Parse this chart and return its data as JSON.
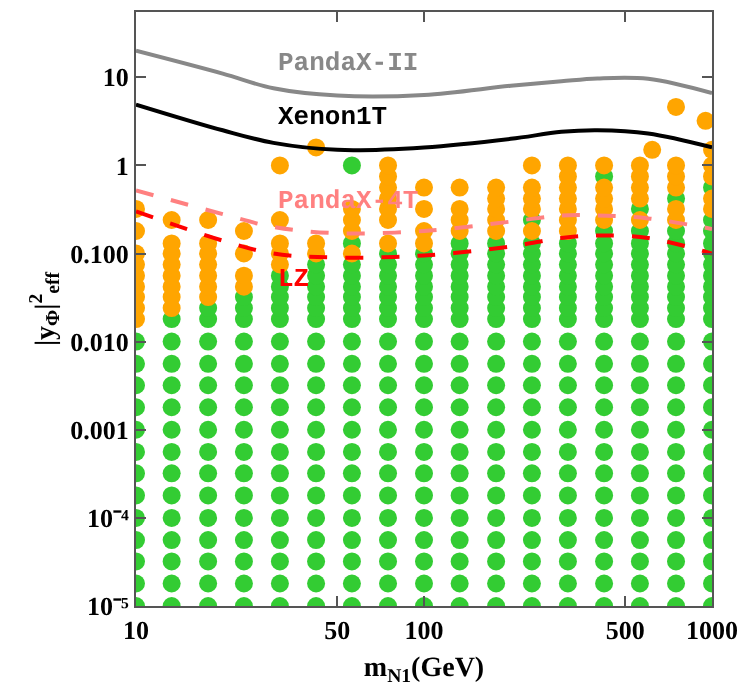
{
  "chart_data": {
    "type": "scatter",
    "xlabel": "m$_{N1}$(GeV)",
    "ylabel": "|y$_{Φ}$|$^{2}$$_{eff}$",
    "log": "xy",
    "marker": "circle",
    "xlim": [
      10,
      1000
    ],
    "xticks": [
      10,
      50,
      100,
      500,
      1000
    ],
    "ylim": [
      1e-05,
      55
    ],
    "yticks": [
      10,
      1,
      {
        "value": 0.1,
        "label": "0.100"
      },
      {
        "value": 0.01,
        "label": "0.010"
      },
      0.001,
      {
        "value": 0.0001,
        "label": "10⁻⁴"
      },
      {
        "value": 1e-05,
        "label": "10⁻⁵"
      }
    ],
    "series": [
      {
        "color": "#33cc33",
        "x": [
          10,
          13.3,
          17.8,
          23.7,
          31.6,
          42.2,
          56.2,
          75,
          100,
          133,
          178,
          237,
          316,
          422,
          562,
          750,
          1000
        ],
        "values": [
          1e-05,
          1e-05,
          1e-05,
          1e-05,
          1e-05,
          1e-05,
          1e-05,
          1e-05,
          1e-05,
          1e-05,
          1e-05,
          1e-05,
          1e-05,
          1e-05,
          1e-05,
          1e-05,
          1e-05
        ]
      },
      {
        "color": "#33cc33",
        "x": [
          10,
          13.3,
          17.8,
          23.7,
          31.6,
          42.2,
          56.2,
          75,
          100,
          133,
          178,
          237,
          316,
          422,
          562,
          750,
          1000
        ],
        "values": [
          1.8e-05,
          1.8e-05,
          1.8e-05,
          1.8e-05,
          1.8e-05,
          1.8e-05,
          1.8e-05,
          1.8e-05,
          1.8e-05,
          1.8e-05,
          1.8e-05,
          1.8e-05,
          1.8e-05,
          1.8e-05,
          1.8e-05,
          1.8e-05,
          1.8e-05
        ]
      },
      {
        "color": "#33cc33",
        "x": [
          10,
          13.3,
          17.8,
          23.7,
          31.6,
          42.2,
          56.2,
          75,
          100,
          133,
          178,
          237,
          316,
          422,
          562,
          750,
          1000
        ],
        "values": [
          3.2e-05,
          3.2e-05,
          3.2e-05,
          3.2e-05,
          3.2e-05,
          3.2e-05,
          3.2e-05,
          3.2e-05,
          3.2e-05,
          3.2e-05,
          3.2e-05,
          3.2e-05,
          3.2e-05,
          3.2e-05,
          3.2e-05,
          3.2e-05,
          3.2e-05
        ]
      },
      {
        "color": "#33cc33",
        "x": [
          10,
          13.3,
          17.8,
          23.7,
          31.6,
          42.2,
          56.2,
          75,
          100,
          133,
          178,
          237,
          316,
          422,
          562,
          750,
          1000
        ],
        "values": [
          5.6e-05,
          5.6e-05,
          5.6e-05,
          5.6e-05,
          5.6e-05,
          5.6e-05,
          5.6e-05,
          5.6e-05,
          5.6e-05,
          5.6e-05,
          5.6e-05,
          5.6e-05,
          5.6e-05,
          5.6e-05,
          5.6e-05,
          5.6e-05,
          5.6e-05
        ]
      },
      {
        "color": "#33cc33",
        "x": [
          10,
          13.3,
          17.8,
          23.7,
          31.6,
          42.2,
          56.2,
          75,
          100,
          133,
          178,
          237,
          316,
          422,
          562,
          750,
          1000
        ],
        "values": [
          0.0001,
          0.0001,
          0.0001,
          0.0001,
          0.0001,
          0.0001,
          0.0001,
          0.0001,
          0.0001,
          0.0001,
          0.0001,
          0.0001,
          0.0001,
          0.0001,
          0.0001,
          0.0001,
          0.0001
        ]
      },
      {
        "color": "#33cc33",
        "x": [
          10,
          13.3,
          17.8,
          23.7,
          31.6,
          42.2,
          56.2,
          75,
          100,
          133,
          178,
          237,
          316,
          422,
          562,
          750,
          1000
        ],
        "values": [
          0.00018,
          0.00018,
          0.00018,
          0.00018,
          0.00018,
          0.00018,
          0.00018,
          0.00018,
          0.00018,
          0.00018,
          0.00018,
          0.00018,
          0.00018,
          0.00018,
          0.00018,
          0.00018,
          0.00018
        ]
      },
      {
        "color": "#33cc33",
        "x": [
          10,
          13.3,
          17.8,
          23.7,
          31.6,
          42.2,
          56.2,
          75,
          100,
          133,
          178,
          237,
          316,
          422,
          562,
          750,
          1000
        ],
        "values": [
          0.00032,
          0.00032,
          0.00032,
          0.00032,
          0.00032,
          0.00032,
          0.00032,
          0.00032,
          0.00032,
          0.00032,
          0.00032,
          0.00032,
          0.00032,
          0.00032,
          0.00032,
          0.00032,
          0.00032
        ]
      },
      {
        "color": "#33cc33",
        "x": [
          10,
          13.3,
          17.8,
          23.7,
          31.6,
          42.2,
          56.2,
          75,
          100,
          133,
          178,
          237,
          316,
          422,
          562,
          750,
          1000
        ],
        "values": [
          0.00056,
          0.00056,
          0.00056,
          0.00056,
          0.00056,
          0.00056,
          0.00056,
          0.00056,
          0.00056,
          0.00056,
          0.00056,
          0.00056,
          0.00056,
          0.00056,
          0.00056,
          0.00056,
          0.00056
        ]
      },
      {
        "color": "#33cc33",
        "x": [
          10,
          13.3,
          17.8,
          23.7,
          31.6,
          42.2,
          56.2,
          75,
          100,
          133,
          178,
          237,
          316,
          422,
          562,
          750,
          1000
        ],
        "values": [
          0.001,
          0.001,
          0.001,
          0.001,
          0.001,
          0.001,
          0.001,
          0.001,
          0.001,
          0.001,
          0.001,
          0.001,
          0.001,
          0.001,
          0.001,
          0.001,
          0.001
        ]
      },
      {
        "color": "#33cc33",
        "x": [
          10,
          13.3,
          17.8,
          23.7,
          31.6,
          42.2,
          56.2,
          75,
          100,
          133,
          178,
          237,
          316,
          422,
          562,
          750,
          1000
        ],
        "values": [
          0.0018,
          0.0018,
          0.0018,
          0.0018,
          0.0018,
          0.0018,
          0.0018,
          0.0018,
          0.0018,
          0.0018,
          0.0018,
          0.0018,
          0.0018,
          0.0018,
          0.0018,
          0.0018,
          0.0018
        ]
      },
      {
        "color": "#33cc33",
        "x": [
          10,
          13.3,
          17.8,
          23.7,
          31.6,
          42.2,
          56.2,
          75,
          100,
          133,
          178,
          237,
          316,
          422,
          562,
          750,
          1000
        ],
        "values": [
          0.0032,
          0.0032,
          0.0032,
          0.0032,
          0.0032,
          0.0032,
          0.0032,
          0.0032,
          0.0032,
          0.0032,
          0.0032,
          0.0032,
          0.0032,
          0.0032,
          0.0032,
          0.0032,
          0.0032
        ]
      },
      {
        "color": "#33cc33",
        "x": [
          10,
          13.3,
          17.8,
          23.7,
          31.6,
          42.2,
          56.2,
          75,
          100,
          133,
          178,
          237,
          316,
          422,
          562,
          750,
          1000
        ],
        "values": [
          0.0056,
          0.0056,
          0.0056,
          0.0056,
          0.0056,
          0.0056,
          0.0056,
          0.0056,
          0.0056,
          0.0056,
          0.0056,
          0.0056,
          0.0056,
          0.0056,
          0.0056,
          0.0056,
          0.0056
        ]
      },
      {
        "color": "#33cc33",
        "x": [
          10,
          13.3,
          17.8,
          23.7,
          31.6,
          42.2,
          56.2,
          75,
          100,
          133,
          178,
          237,
          316,
          422,
          562,
          750,
          1000
        ],
        "values": [
          0.01,
          0.01,
          0.01,
          0.01,
          0.01,
          0.01,
          0.01,
          0.01,
          0.01,
          0.01,
          0.01,
          0.01,
          0.01,
          0.01,
          0.01,
          0.01,
          0.01
        ]
      },
      {
        "color": "#33cc33",
        "x": [
          13.3,
          17.8,
          17.8,
          23.7,
          23.7,
          23.7,
          31.6,
          31.6,
          31.6,
          31.6,
          31.6,
          42.2,
          42.2,
          42.2,
          42.2,
          42.2,
          42.2,
          56.2,
          56.2,
          56.2,
          56.2,
          56.2,
          56.2,
          56.2,
          56.2,
          75,
          75,
          75,
          75,
          75,
          75,
          75,
          100,
          100,
          100,
          100,
          100,
          100,
          100,
          133,
          133,
          133,
          133,
          133,
          133,
          133,
          133,
          178,
          178,
          178,
          178,
          178,
          178,
          178,
          178,
          237,
          237,
          237,
          237,
          237,
          237,
          237,
          237,
          237,
          316,
          316,
          316,
          316,
          316,
          316,
          316,
          316,
          422,
          422,
          422,
          422,
          422,
          422,
          422,
          422,
          422,
          422,
          562,
          562,
          562,
          562,
          562,
          562,
          562,
          562,
          562,
          562,
          750,
          750,
          750,
          750,
          750,
          750,
          750,
          750,
          750,
          750,
          1000,
          1000,
          1000,
          1000,
          1000,
          1000,
          1000,
          1000,
          1000,
          1000,
          1000
        ],
        "values": [
          0.018,
          0.018,
          0.024,
          0.018,
          0.024,
          0.032,
          0.018,
          0.024,
          0.032,
          0.042,
          0.056,
          0.018,
          0.024,
          0.032,
          0.042,
          0.056,
          0.075,
          0.018,
          0.024,
          0.032,
          0.042,
          0.056,
          0.075,
          0.13,
          1.0,
          0.018,
          0.024,
          0.032,
          0.042,
          0.056,
          0.075,
          0.1,
          0.018,
          0.024,
          0.032,
          0.042,
          0.056,
          0.075,
          0.1,
          0.018,
          0.024,
          0.032,
          0.042,
          0.056,
          0.075,
          0.1,
          0.13,
          0.018,
          0.024,
          0.032,
          0.042,
          0.056,
          0.075,
          0.1,
          0.13,
          0.018,
          0.024,
          0.032,
          0.042,
          0.056,
          0.075,
          0.1,
          0.13,
          0.24,
          0.018,
          0.024,
          0.032,
          0.042,
          0.056,
          0.075,
          0.1,
          0.13,
          0.018,
          0.024,
          0.032,
          0.042,
          0.056,
          0.075,
          0.1,
          0.13,
          0.18,
          0.75,
          0.018,
          0.024,
          0.032,
          0.042,
          0.056,
          0.075,
          0.1,
          0.13,
          0.18,
          0.32,
          0.018,
          0.024,
          0.032,
          0.042,
          0.056,
          0.075,
          0.1,
          0.13,
          0.18,
          0.42,
          0.018,
          0.024,
          0.032,
          0.042,
          0.056,
          0.075,
          0.1,
          0.13,
          0.18,
          0.24,
          0.56
        ]
      },
      {
        "color": "#ffa500",
        "x": [
          10,
          10,
          10,
          10,
          10,
          10,
          10,
          10,
          10,
          13.3,
          13.3,
          13.3,
          13.3,
          13.3,
          13.3,
          13.3,
          13.3,
          17.8,
          17.8,
          17.8,
          17.8,
          17.8,
          17.8,
          17.8,
          23.7,
          23.7,
          23.7,
          23.7,
          31.6,
          31.6,
          31.6,
          31.6,
          31.6,
          42.2,
          42.2,
          42.2,
          56.2,
          56.2,
          56.2,
          56.2,
          75,
          75,
          75,
          75,
          75,
          75,
          75,
          100,
          100,
          100,
          100,
          133,
          133,
          133,
          133,
          178,
          178,
          178,
          178,
          178,
          237,
          237,
          237,
          237,
          237,
          316,
          316,
          316,
          316,
          316,
          316,
          316,
          422,
          422,
          422,
          422,
          422,
          562,
          562,
          562,
          562,
          562,
          620,
          750,
          750,
          750,
          750,
          750,
          750,
          950,
          1000,
          1000,
          1000,
          1000,
          1000
        ],
        "values": [
          0.018,
          0.024,
          0.032,
          0.042,
          0.056,
          0.075,
          0.1,
          0.18,
          0.32,
          0.024,
          0.032,
          0.042,
          0.056,
          0.075,
          0.1,
          0.13,
          0.24,
          0.032,
          0.042,
          0.056,
          0.075,
          0.1,
          0.13,
          0.24,
          0.042,
          0.056,
          0.1,
          0.18,
          0.075,
          0.1,
          0.13,
          0.24,
          1.0,
          0.1,
          0.13,
          1.6,
          0.1,
          0.18,
          0.24,
          0.32,
          0.13,
          0.24,
          0.32,
          0.42,
          0.56,
          0.75,
          1.0,
          0.13,
          0.18,
          0.32,
          0.56,
          0.18,
          0.24,
          0.32,
          0.56,
          0.18,
          0.24,
          0.32,
          0.42,
          0.56,
          0.18,
          0.32,
          0.42,
          0.56,
          1.0,
          0.18,
          0.24,
          0.32,
          0.42,
          0.56,
          0.75,
          1.0,
          0.24,
          0.32,
          0.42,
          0.56,
          1.0,
          0.24,
          0.42,
          0.56,
          0.75,
          1.0,
          1.5,
          0.24,
          0.32,
          0.56,
          0.75,
          1.0,
          4.6,
          3.2,
          0.32,
          0.42,
          0.75,
          1.0,
          1.5
        ]
      },
      {
        "type": "line",
        "name": "PandaX-II",
        "marker": "none",
        "color": "#888888",
        "line_style": "solid",
        "x": [
          10,
          20,
          30,
          50,
          100,
          200,
          300,
          400,
          600,
          1000
        ],
        "values": [
          20,
          11,
          7.5,
          6.2,
          6.3,
          8,
          9,
          9.7,
          9.6,
          6.6
        ]
      },
      {
        "type": "line",
        "name": "Xenon1T",
        "marker": "none",
        "color": "#000000",
        "line_style": "solid",
        "x": [
          10,
          20,
          30,
          50,
          100,
          200,
          300,
          400,
          600,
          1000
        ],
        "values": [
          4.9,
          2.5,
          1.8,
          1.5,
          1.6,
          2.0,
          2.4,
          2.5,
          2.3,
          1.6
        ]
      },
      {
        "type": "line",
        "name": "PandaX-4T",
        "marker": "none",
        "color": "#ff8080",
        "line_style": "dashed",
        "x": [
          10,
          20,
          30,
          50,
          100,
          200,
          300,
          400,
          600,
          1000
        ],
        "values": [
          0.52,
          0.28,
          0.2,
          0.17,
          0.18,
          0.23,
          0.27,
          0.27,
          0.25,
          0.19
        ]
      },
      {
        "type": "line",
        "name": "LZ",
        "marker": "none",
        "color": "#ff0000",
        "line_style": "dashed",
        "x": [
          10,
          20,
          30,
          50,
          100,
          200,
          300,
          400,
          600,
          1000
        ],
        "values": [
          0.3,
          0.14,
          0.1,
          0.09,
          0.095,
          0.12,
          0.15,
          0.16,
          0.15,
          0.1
        ]
      }
    ]
  }
}
